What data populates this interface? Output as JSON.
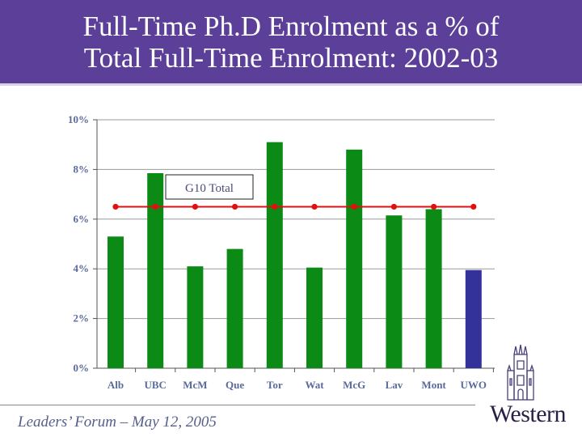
{
  "title": {
    "line1": "Full-Time Ph.D Enrolment as a % of",
    "line2": "Total Full-Time Enrolment:  2002-03"
  },
  "footer": {
    "text": "Leaders’ Forum – May 12, 2005",
    "logo_text": "Western",
    "logo_icon": "university-tower-icon"
  },
  "colors": {
    "banner": "#5b3f99",
    "bar": "#0b8a16",
    "bar_highlight": "#33329a",
    "line": "#e01010"
  },
  "chart_data": {
    "type": "bar",
    "categories": [
      "Alb",
      "UBC",
      "McM",
      "Que",
      "Tor",
      "Wat",
      "McG",
      "Lav",
      "Mont",
      "UWO"
    ],
    "series": [
      {
        "values": [
          5.3,
          7.85,
          4.1,
          4.8,
          9.1,
          4.05,
          8.8,
          6.15,
          6.4,
          3.95
        ]
      },
      {
        "name": "G10 Total",
        "type": "line",
        "values": [
          6.5,
          6.5,
          6.5,
          6.5,
          6.5,
          6.5,
          6.5,
          6.5,
          6.5,
          6.5
        ]
      }
    ],
    "highlight_category": "UWO",
    "ylim": [
      0,
      10
    ],
    "y_ticks": [
      "0%",
      "2%",
      "4%",
      "6%",
      "8%",
      "10%"
    ],
    "y_tick_values": [
      0,
      2,
      4,
      6,
      8,
      10
    ],
    "grid": true,
    "legend_label": "G10 Total"
  }
}
